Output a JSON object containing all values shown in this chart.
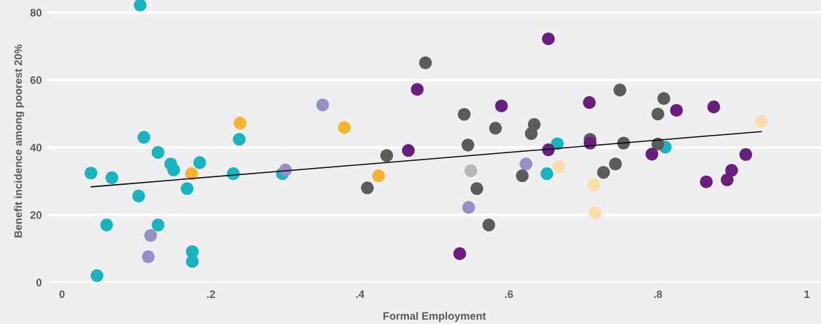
{
  "chart_data": {
    "type": "scatter",
    "xlabel": "Formal Employment",
    "ylabel": "Benefit incidence among poorest 20%",
    "xlim": [
      -0.019,
      1.019
    ],
    "ylim": [
      0,
      83.7
    ],
    "xticks": [
      {
        "value": 0,
        "label": "0"
      },
      {
        "value": 0.2,
        "label": ".2"
      },
      {
        "value": 0.4,
        "label": ".4"
      },
      {
        "value": 0.6,
        "label": ".6"
      },
      {
        "value": 0.8,
        "label": ".8"
      },
      {
        "value": 1,
        "label": "1"
      }
    ],
    "yticks": [
      0,
      20,
      40,
      60,
      80
    ],
    "grid": "y",
    "legend": false,
    "marker": "circle",
    "series": [
      {
        "color": "#17b3bf",
        "x": [
          0.039,
          0.067,
          0.06,
          0.047,
          0.105,
          0.11,
          0.103,
          0.129,
          0.129,
          0.146,
          0.15,
          0.185,
          0.168,
          0.175,
          0.175,
          0.238,
          0.23,
          0.296,
          0.651,
          0.665,
          0.81
        ],
        "values": [
          32.4,
          31.0,
          17.0,
          2.0,
          82.2,
          43.0,
          25.6,
          38.5,
          17.0,
          35.1,
          33.3,
          35.5,
          27.8,
          9.1,
          6.2,
          42.4,
          32.2,
          32.2,
          32.2,
          41.1,
          40.1
        ]
      },
      {
        "color": "#f9b42d",
        "x": [
          0.174,
          0.239,
          0.379,
          0.425
        ],
        "values": [
          32.2,
          47.2,
          45.9,
          31.6
        ]
      },
      {
        "color": "#9590c7",
        "x": [
          0.119,
          0.116,
          0.3,
          0.35,
          0.546,
          0.623
        ],
        "values": [
          13.9,
          7.6,
          33.3,
          52.6,
          22.2,
          35.1
        ]
      },
      {
        "color": "#5a5b5b",
        "x": [
          0.488,
          0.54,
          0.545,
          0.582,
          0.634,
          0.63,
          0.436,
          0.41,
          0.557,
          0.573,
          0.618,
          0.749,
          0.808,
          0.8,
          0.709,
          0.754,
          0.8,
          0.743,
          0.727
        ],
        "values": [
          65.1,
          49.8,
          40.7,
          45.7,
          46.8,
          44.1,
          37.6,
          28.0,
          27.8,
          17.0,
          31.6,
          57.0,
          54.5,
          49.9,
          42.4,
          41.3,
          41.0,
          35.1,
          32.6
        ]
      },
      {
        "color": "#b7b7b7",
        "x": [
          0.549
        ],
        "values": [
          33.1
        ]
      },
      {
        "color": "#6a1e7e",
        "x": [
          0.653,
          0.477,
          0.465,
          0.59,
          0.534,
          0.653,
          0.708,
          0.709,
          0.825,
          0.875,
          0.792,
          0.918,
          0.899,
          0.893,
          0.865
        ],
        "values": [
          72.2,
          57.2,
          39.1,
          52.3,
          8.5,
          39.3,
          53.3,
          41.3,
          51.0,
          52.0,
          38.0,
          37.9,
          33.2,
          30.4,
          29.8
        ]
      },
      {
        "color": "#fedcaa",
        "x": [
          0.667,
          0.714,
          0.716,
          0.939
        ],
        "values": [
          34.3,
          28.9,
          20.6,
          47.7
        ]
      },
      {
        "type": "line",
        "color": "#000000",
        "x": [
          0.039,
          0.939
        ],
        "values": [
          28.3,
          44.7
        ],
        "marker": "none",
        "line_style": "solid"
      }
    ]
  }
}
